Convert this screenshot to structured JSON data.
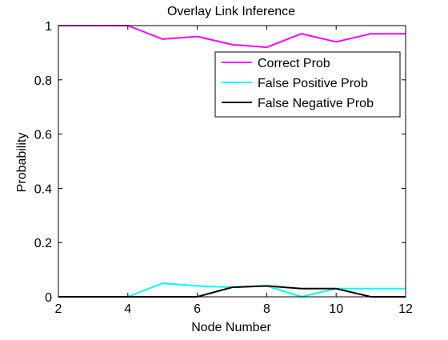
{
  "chart_data": {
    "type": "line",
    "title": "Overlay Link Inference",
    "xlabel": "Node Number",
    "ylabel": "Probability",
    "xlim": [
      2,
      12
    ],
    "ylim": [
      0,
      1
    ],
    "xticks": [
      2,
      4,
      6,
      8,
      10,
      12
    ],
    "yticks": [
      0,
      0.2,
      0.4,
      0.6,
      0.8,
      1
    ],
    "xtick_labels": [
      "2",
      "4",
      "6",
      "8",
      "10",
      "12"
    ],
    "ytick_labels": [
      "0",
      "0.2",
      "0.4",
      "0.6",
      "0.8",
      "1"
    ],
    "grid": false,
    "legend_position": "top-right",
    "series": [
      {
        "name": "Correct Prob",
        "color": "#ff00ff",
        "x": [
          2,
          3,
          4,
          5,
          6,
          7,
          8,
          9,
          10,
          11,
          12
        ],
        "values": [
          1.0,
          1.0,
          1.0,
          0.95,
          0.96,
          0.93,
          0.92,
          0.97,
          0.94,
          0.97,
          0.97
        ]
      },
      {
        "name": "False Positive Prob",
        "color": "#00ffff",
        "x": [
          2,
          3,
          4,
          5,
          6,
          7,
          8,
          9,
          10,
          11,
          12
        ],
        "values": [
          0,
          0,
          0,
          0.05,
          0.04,
          0.035,
          0.04,
          0.0,
          0.03,
          0.03,
          0.03
        ]
      },
      {
        "name": "False Negative Prob",
        "color": "#000000",
        "x": [
          2,
          3,
          4,
          5,
          6,
          7,
          8,
          9,
          10,
          11,
          12
        ],
        "values": [
          0,
          0,
          0,
          0,
          0,
          0.035,
          0.04,
          0.03,
          0.03,
          0.0,
          0.0
        ]
      }
    ]
  }
}
